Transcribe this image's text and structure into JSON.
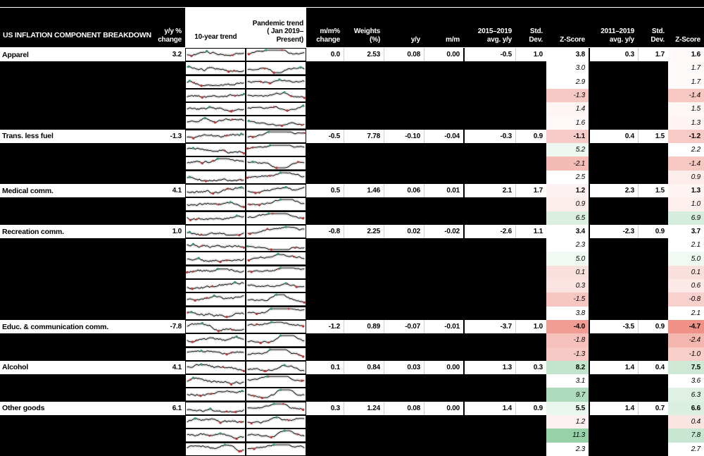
{
  "title": "US INFLATION COMPONENT BREAKDOWN",
  "header": {
    "yoy_change": "y/y %\nchange",
    "trend_10yr": "10-year trend",
    "trend_pandemic": "Pandemic trend\n( Jan 2019–Present)",
    "mm_change": "m/m%\nchange",
    "weights": "Weights\n(%)",
    "yy": "y/y",
    "mm": "m/m",
    "avg_2015_2019": "2015–2019\navg. y/y",
    "std_2015_2019": "Std. Dev.",
    "z_2015_2019": "Z-Score",
    "avg_2011_2019": "2011–2019\navg. y/y",
    "std_2011_2019": "Std. Dev.",
    "z_2011_2019": "Z-Score"
  },
  "colors": {
    "background": "#000000",
    "row_bg": "#ffffff",
    "header_text": "#ffffff",
    "z_negative": "#ee8c82",
    "z_positive": "#8ccda0",
    "spark_line": "#161616",
    "spark_band": "#dcdcdc",
    "dot_low": "#cc3333",
    "dot_high": "#2f9e77"
  },
  "chart_data": {
    "type": "table",
    "columns": [
      "Component",
      "y/y % change",
      "10-year trend",
      "Pandemic trend (Jan 2019–Present)",
      "m/m% change",
      "Weights (%)",
      "y/y",
      "m/m",
      "2015–2019 avg. y/y",
      "Std. Dev.",
      "Z-Score",
      "2011–2019 avg. y/y",
      "Std. Dev.",
      "Z-Score"
    ],
    "sparkline_note": "Each row contains two unlabeled mini line charts (10-year trend and pandemic trend) with red low markers and green high markers.",
    "rows": [
      {
        "label": "Apparel",
        "yoy_change": "3.2",
        "mm_change": "0.0",
        "weights": "2.53",
        "yy_contrib": "0.08",
        "mm_contrib": "0.00",
        "avg_2015_2019": "-0.5",
        "std_2015_2019": "1.0",
        "z_2015_2019": "3.8",
        "avg_2011_2019": "0.3",
        "std_2011_2019": "1.7",
        "z_2011_2019": "1.6"
      },
      {
        "label": null,
        "z_2015_2019": "3.0",
        "z_2011_2019": "1.7"
      },
      {
        "label": null,
        "z_2015_2019": "2.9",
        "z_2011_2019": "1.7"
      },
      {
        "label": null,
        "z_2015_2019": "-1.3",
        "z_2011_2019": "-1.4"
      },
      {
        "label": null,
        "z_2015_2019": "1.4",
        "z_2011_2019": "1.5"
      },
      {
        "label": null,
        "z_2015_2019": "1.6",
        "z_2011_2019": "1.3"
      },
      {
        "label": "Trans. less fuel",
        "yoy_change": "-1.3",
        "mm_change": "-0.5",
        "weights": "7.78",
        "yy_contrib": "-0.10",
        "mm_contrib": "-0.04",
        "avg_2015_2019": "-0.3",
        "std_2015_2019": "0.9",
        "z_2015_2019": "-1.1",
        "avg_2011_2019": "0.4",
        "std_2011_2019": "1.5",
        "z_2011_2019": "-1.2"
      },
      {
        "label": null,
        "z_2015_2019": "5.2",
        "z_2011_2019": "2.2"
      },
      {
        "label": null,
        "z_2015_2019": "-2.1",
        "z_2011_2019": "-1.4"
      },
      {
        "label": null,
        "z_2015_2019": "2.5",
        "z_2011_2019": "0.9"
      },
      {
        "label": "Medical comm.",
        "yoy_change": "4.1",
        "mm_change": "0.5",
        "weights": "1.46",
        "yy_contrib": "0.06",
        "mm_contrib": "0.01",
        "avg_2015_2019": "2.1",
        "std_2015_2019": "1.7",
        "z_2015_2019": "1.2",
        "avg_2011_2019": "2.3",
        "std_2011_2019": "1.5",
        "z_2011_2019": "1.3"
      },
      {
        "label": null,
        "z_2015_2019": "0.9",
        "z_2011_2019": "1.0"
      },
      {
        "label": null,
        "z_2015_2019": "6.5",
        "z_2011_2019": "6.9"
      },
      {
        "label": "Recreation comm.",
        "yoy_change": "1.0",
        "mm_change": "-0.8",
        "weights": "2.25",
        "yy_contrib": "0.02",
        "mm_contrib": "-0.02",
        "avg_2015_2019": "-2.6",
        "std_2015_2019": "1.1",
        "z_2015_2019": "3.4",
        "avg_2011_2019": "-2.3",
        "std_2011_2019": "0.9",
        "z_2011_2019": "3.7"
      },
      {
        "label": null,
        "z_2015_2019": "2.3",
        "z_2011_2019": "2.1"
      },
      {
        "label": null,
        "z_2015_2019": "5.0",
        "z_2011_2019": "5.0"
      },
      {
        "label": null,
        "z_2015_2019": "0.1",
        "z_2011_2019": "0.1"
      },
      {
        "label": null,
        "z_2015_2019": "0.3",
        "z_2011_2019": "0.6"
      },
      {
        "label": null,
        "z_2015_2019": "-1.5",
        "z_2011_2019": "-0.8"
      },
      {
        "label": null,
        "z_2015_2019": "3.8",
        "z_2011_2019": "2.1"
      },
      {
        "label": "Educ. & communication comm.",
        "yoy_change": "-7.8",
        "mm_change": "-1.2",
        "weights": "0.89",
        "yy_contrib": "-0.07",
        "mm_contrib": "-0.01",
        "avg_2015_2019": "-3.7",
        "std_2015_2019": "1.0",
        "z_2015_2019": "-4.0",
        "avg_2011_2019": "-3.5",
        "std_2011_2019": "0.9",
        "z_2011_2019": "-4.7"
      },
      {
        "label": null,
        "z_2015_2019": "-1.8",
        "z_2011_2019": "-2.4"
      },
      {
        "label": null,
        "z_2015_2019": "-1.3",
        "z_2011_2019": "-1.0"
      },
      {
        "label": "Alcohol",
        "yoy_change": "4.1",
        "mm_change": "0.1",
        "weights": "0.84",
        "yy_contrib": "0.03",
        "mm_contrib": "0.00",
        "avg_2015_2019": "1.3",
        "std_2015_2019": "0.3",
        "z_2015_2019": "8.2",
        "avg_2011_2019": "1.4",
        "std_2011_2019": "0.4",
        "z_2011_2019": "7.5"
      },
      {
        "label": null,
        "z_2015_2019": "3.1",
        "z_2011_2019": "3.6"
      },
      {
        "label": null,
        "z_2015_2019": "9.7",
        "z_2011_2019": "6.3"
      },
      {
        "label": "Other goods",
        "yoy_change": "6.1",
        "mm_change": "0.3",
        "weights": "1.24",
        "yy_contrib": "0.08",
        "mm_contrib": "0.00",
        "avg_2015_2019": "1.4",
        "std_2015_2019": "0.9",
        "z_2015_2019": "5.5",
        "avg_2011_2019": "1.4",
        "std_2011_2019": "0.7",
        "z_2011_2019": "6.6"
      },
      {
        "label": null,
        "z_2015_2019": "1.2",
        "z_2011_2019": "0.4"
      },
      {
        "label": null,
        "z_2015_2019": "11.3",
        "z_2011_2019": "7.8"
      },
      {
        "label": null,
        "z_2015_2019": "2.3",
        "z_2011_2019": "2.7"
      }
    ]
  }
}
